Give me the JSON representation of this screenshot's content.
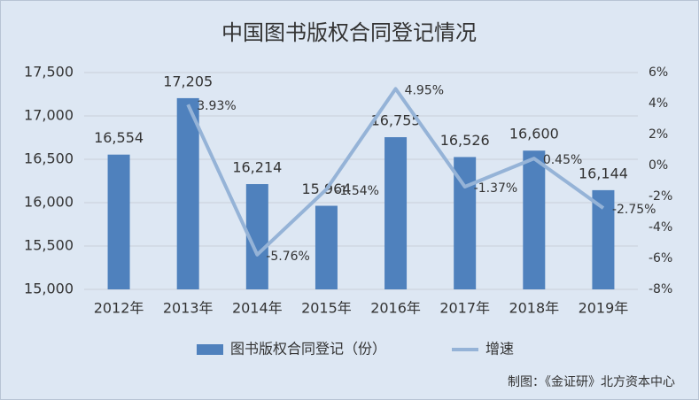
{
  "chart_data": {
    "type": "bar_line",
    "title": "中国图书版权合同登记情况",
    "categories": [
      "2012年",
      "2013年",
      "2014年",
      "2015年",
      "2016年",
      "2017年",
      "2018年",
      "2019年"
    ],
    "series": [
      {
        "name": "图书版权合同登记（份）",
        "type": "bar",
        "color": "#4f81bd",
        "values": [
          16554,
          17205,
          16214,
          15964,
          16755,
          16526,
          16600,
          16144
        ],
        "value_labels": [
          "16,554",
          "17,205",
          "16,214",
          "15,964",
          "16,755",
          "16,526",
          "16,600",
          "16,144"
        ]
      },
      {
        "name": "增速",
        "type": "line",
        "axis": "y2",
        "color": "#95b3d7",
        "values": [
          null,
          3.93,
          -5.76,
          -1.54,
          4.95,
          -1.37,
          0.45,
          -2.75
        ],
        "value_labels": [
          null,
          "3.93%",
          "-5.76%",
          "-1.54%",
          "4.95%",
          "-1.37%",
          "0.45%",
          "-2.75%"
        ]
      }
    ],
    "ylim": [
      15000,
      17500
    ],
    "yticks": [
      {
        "value": 15000,
        "label": "15,000"
      },
      {
        "value": 15500,
        "label": "15,500"
      },
      {
        "value": 16000,
        "label": "16,000"
      },
      {
        "value": 16500,
        "label": "16,500"
      },
      {
        "value": 17000,
        "label": "17,000"
      },
      {
        "value": 17500,
        "label": "17,500"
      }
    ],
    "y2lim": [
      -8,
      6
    ],
    "y2ticks": [
      {
        "value": -8,
        "label": "-8%"
      },
      {
        "value": -6,
        "label": "-6%"
      },
      {
        "value": -4,
        "label": "-4%"
      },
      {
        "value": -2,
        "label": "-2%"
      },
      {
        "value": 0,
        "label": "0%"
      },
      {
        "value": 2,
        "label": "2%"
      },
      {
        "value": 4,
        "label": "4%"
      },
      {
        "value": 6,
        "label": "6%"
      }
    ],
    "grid": true,
    "legend": "bottom",
    "source": "制图：《金证研》北方资本中心"
  }
}
